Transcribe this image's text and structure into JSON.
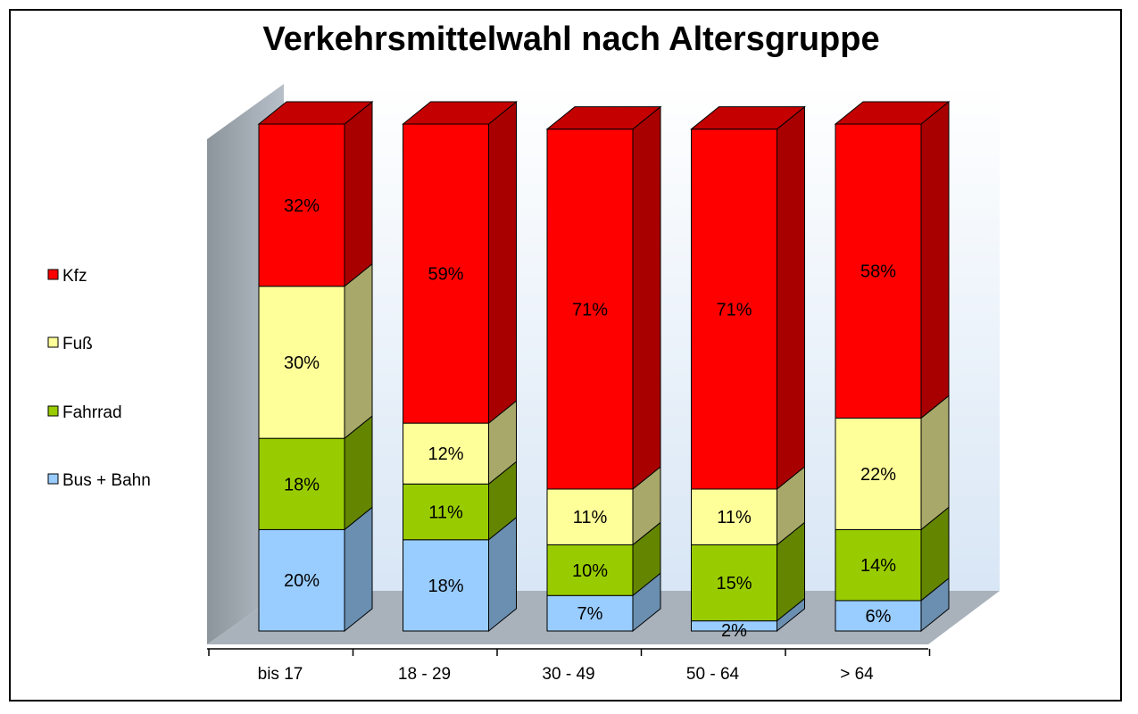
{
  "chart_data": {
    "type": "bar",
    "stacked": true,
    "title": "Verkehrsmittelwahl nach Altersgruppe",
    "xlabel": "",
    "ylabel": "",
    "categories": [
      "bis 17",
      "18 - 29",
      "30 - 49",
      "50 - 64",
      "> 64"
    ],
    "series": [
      {
        "name": "Bus + Bahn",
        "values": [
          20,
          18,
          7,
          2,
          6
        ],
        "color": "#99ccff",
        "side_color": "#6a8fb0",
        "top_color": "#b8dcff"
      },
      {
        "name": "Fahrrad",
        "values": [
          18,
          11,
          10,
          15,
          14
        ],
        "color": "#99cc00",
        "side_color": "#638500",
        "top_color": "#b5db33"
      },
      {
        "name": "Fuß",
        "values": [
          30,
          12,
          11,
          11,
          22
        ],
        "color": "#ffff99",
        "side_color": "#a8a86a",
        "top_color": "#ffffc0"
      },
      {
        "name": "Kfz",
        "values": [
          32,
          59,
          71,
          71,
          58
        ],
        "color": "#ff0000",
        "side_color": "#a80000",
        "top_color": "#c40000"
      }
    ],
    "data_labels": [
      [
        "20%",
        "18%",
        "7%",
        "2%",
        "6%"
      ],
      [
        "18%",
        "11%",
        "10%",
        "15%",
        "14%"
      ],
      [
        "30%",
        "12%",
        "11%",
        "11%",
        "22%"
      ],
      [
        "32%",
        "59%",
        "71%",
        "71%",
        "58%"
      ]
    ],
    "ylim": [
      0,
      100
    ],
    "legend": "left",
    "legend_order": [
      "Kfz",
      "Fuß",
      "Fahrrad",
      "Bus + Bahn"
    ],
    "grid": false,
    "three_d": true
  }
}
